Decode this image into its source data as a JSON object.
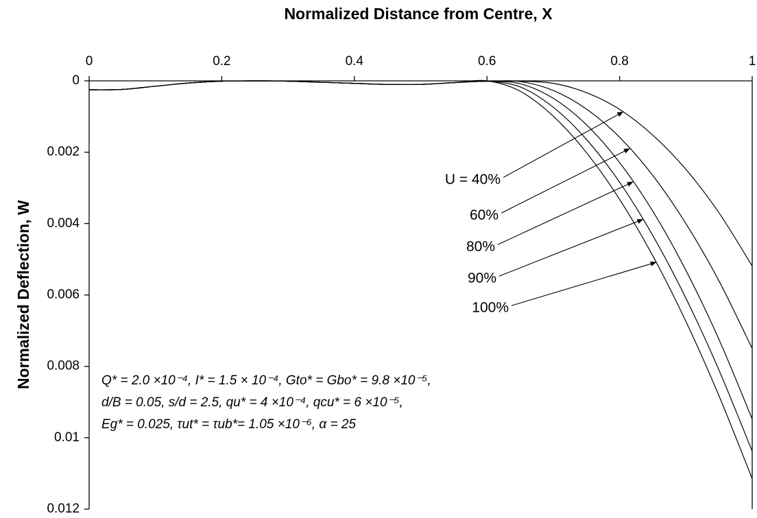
{
  "chart_data": {
    "type": "line",
    "xlabel": "Normalized Distance from Centre, X",
    "ylabel": "Normalized Deflection, W",
    "xlim": [
      0,
      1
    ],
    "xticks": [
      0,
      0.2,
      0.4,
      0.6,
      0.8,
      1
    ],
    "ylim": [
      0,
      0.012
    ],
    "yticks": [
      0,
      0.002,
      0.004,
      0.006,
      0.008,
      0.01,
      0.012
    ],
    "y_inverted": true,
    "x_axis_position": "top",
    "x": [
      0,
      0.05,
      0.1,
      0.15,
      0.2,
      0.25,
      0.3,
      0.35,
      0.4,
      0.45,
      0.5,
      0.55,
      0.6,
      0.65,
      0.7,
      0.75,
      0.8,
      0.85,
      0.9,
      0.95,
      1
    ],
    "series": [
      {
        "name": "U = 40%",
        "color": "#000000",
        "values": [
          0.00025,
          0.00024,
          0.00015,
          6e-05,
          1e-05,
          0,
          1e-05,
          4e-05,
          7e-05,
          0.0001,
          0.0001,
          5e-05,
          1e-05,
          1e-05,
          7e-05,
          0.00033,
          0.0008,
          0.00152,
          0.00248,
          0.0037,
          0.00519
        ]
      },
      {
        "name": "60%",
        "color": "#000000",
        "values": [
          0.00025,
          0.00024,
          0.00015,
          6e-05,
          1e-05,
          0,
          1e-05,
          4e-05,
          7e-05,
          0.0001,
          0.0001,
          5e-05,
          1e-05,
          2e-05,
          0.00027,
          0.00079,
          0.00158,
          0.00265,
          0.004,
          0.00561,
          0.0075
        ]
      },
      {
        "name": "80%",
        "color": "#000000",
        "values": [
          0.00025,
          0.00024,
          0.00015,
          6e-05,
          1e-05,
          0,
          1e-05,
          4e-05,
          7e-05,
          0.0001,
          0.0001,
          5e-05,
          1e-05,
          8e-05,
          0.00049,
          0.00123,
          0.00229,
          0.00365,
          0.00531,
          0.00725,
          0.00948
        ]
      },
      {
        "name": "90%",
        "color": "#000000",
        "values": [
          0.00025,
          0.00024,
          0.00015,
          6e-05,
          1e-05,
          0,
          1e-05,
          4e-05,
          7e-05,
          0.0001,
          0.0001,
          5e-05,
          1e-05,
          0.00017,
          0.00074,
          0.00164,
          0.00284,
          0.00433,
          0.00609,
          0.00811,
          0.01038
        ]
      },
      {
        "name": "100%",
        "color": "#000000",
        "values": [
          0.00025,
          0.00024,
          0.00015,
          6e-05,
          1e-05,
          0,
          1e-05,
          4e-05,
          7e-05,
          0.0001,
          0.0001,
          5e-05,
          0,
          0.00029,
          0.00099,
          0.00201,
          0.00332,
          0.0049,
          0.00674,
          0.00883,
          0.01115
        ]
      }
    ],
    "annotation": [
      "Q* = 2.0 ×10⁻⁴, I* = 1.5 × 10⁻⁴, Gto* = Gbo* = 9.8 ×10⁻⁵,",
      "d/B = 0.05, s/d = 2.5, qu* = 4 ×10⁻⁴, qcu* = 6 ×10⁻⁵,",
      "Eg* = 0.025, τut* = τub*= 1.05 ×10⁻⁶, α = 25"
    ]
  }
}
